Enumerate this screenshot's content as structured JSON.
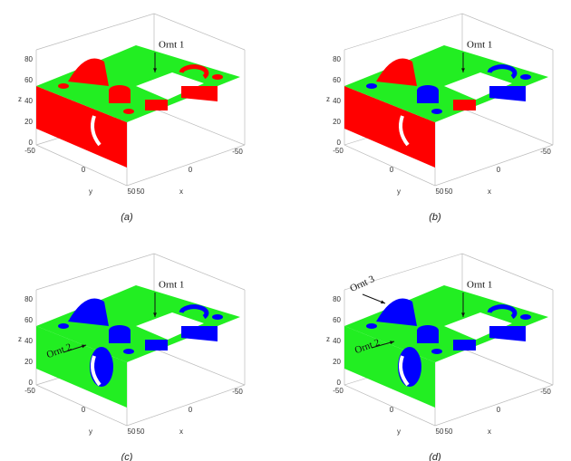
{
  "panels": [
    {
      "caption": "(a)",
      "annotations": [
        "Ornt 1"
      ],
      "z_label": "z",
      "y_label": "y",
      "x_label": "x",
      "z_ticks": [
        "0",
        "20",
        "40",
        "60",
        "80"
      ],
      "y_ticks": [
        "-50",
        "0",
        "50"
      ],
      "x_ticks": [
        "50",
        "0",
        "-50"
      ]
    },
    {
      "caption": "(b)",
      "annotations": [
        "Ornt 1"
      ],
      "z_label": "z",
      "y_label": "y",
      "x_label": "x",
      "z_ticks": [
        "0",
        "20",
        "40",
        "60",
        "80"
      ],
      "y_ticks": [
        "-50",
        "0",
        "50"
      ],
      "x_ticks": [
        "50",
        "0",
        "-50"
      ]
    },
    {
      "caption": "(c)",
      "annotations": [
        "Ornt 1",
        "Ornt 2"
      ],
      "z_label": "z",
      "y_label": "y",
      "x_label": "x",
      "z_ticks": [
        "0",
        "20",
        "40",
        "60",
        "80"
      ],
      "y_ticks": [
        "-50",
        "0",
        "50"
      ],
      "x_ticks": [
        "50",
        "0",
        "-50"
      ]
    },
    {
      "caption": "(d)",
      "annotations": [
        "Ornt 1",
        "Ornt 2",
        "Ornt 3"
      ],
      "z_label": "z",
      "y_label": "y",
      "x_label": "x",
      "z_ticks": [
        "0",
        "20",
        "40",
        "60",
        "80"
      ],
      "y_ticks": [
        "-50",
        "0",
        "50"
      ],
      "x_ticks": [
        "50",
        "0",
        "-50"
      ]
    }
  ]
}
